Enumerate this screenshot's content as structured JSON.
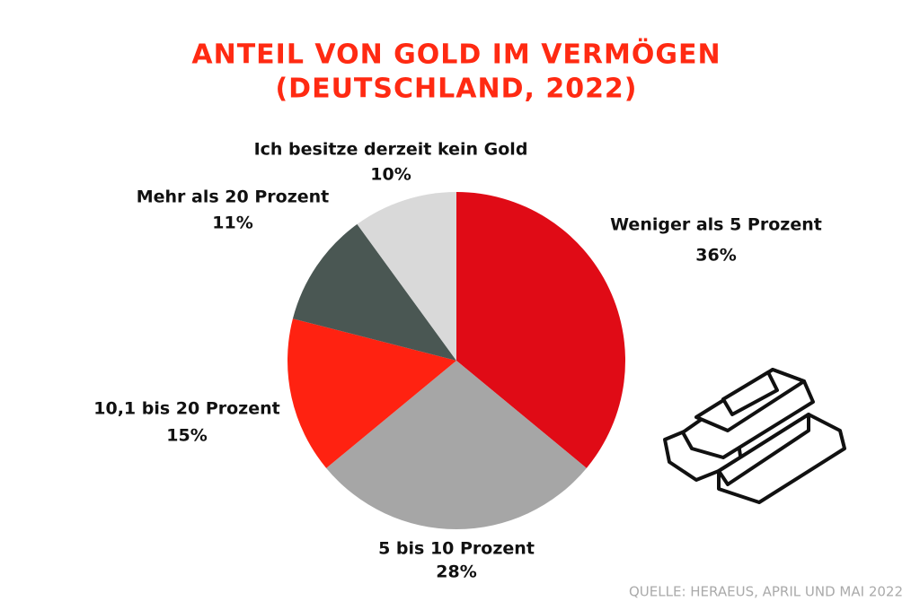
{
  "chart_data": {
    "type": "pie",
    "title": [
      "ANTEIL VON GOLD IM VERMÖGEN",
      "(DEUTSCHLAND, 2022)"
    ],
    "categories": [
      "Weniger als 5 Prozent",
      "5 bis 10 Prozent",
      "10,1 bis 20 Prozent",
      "Mehr als 20 Prozent",
      "Ich besitze derzeit kein Gold"
    ],
    "values": [
      36,
      28,
      15,
      11,
      10
    ],
    "value_labels": [
      "36%",
      "28%",
      "15%",
      "11%",
      "10%"
    ],
    "colors": [
      "#e00b16",
      "#a6a6a6",
      "#ff2211",
      "#4a5753",
      "#d9d9d9"
    ],
    "source": "QUELLE: HERAEUS, APRIL UND MAI 2022"
  }
}
